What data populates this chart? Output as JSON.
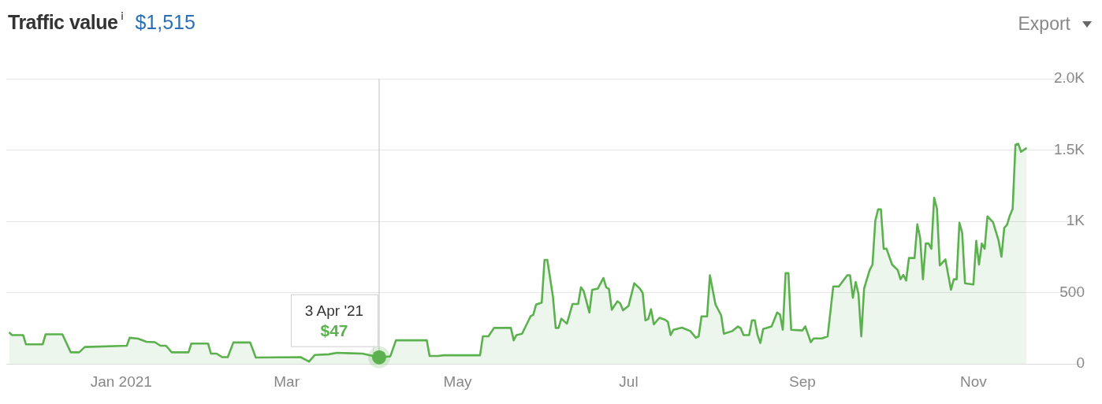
{
  "chart_data": {
    "type": "area",
    "title": "Traffic value",
    "subtitle": "$1,515",
    "x": [
      "2020-11-22",
      "2020-11-23",
      "2020-11-27",
      "2020-11-28",
      "2020-12-04",
      "2020-12-05",
      "2020-12-11",
      "2020-12-14",
      "2020-12-17",
      "2020-12-19",
      "2021-01-03",
      "2021-01-04",
      "2021-01-07",
      "2021-01-10",
      "2021-01-13",
      "2021-01-15",
      "2021-01-17",
      "2021-01-19",
      "2021-01-25",
      "2021-01-26",
      "2021-02-01",
      "2021-02-02",
      "2021-02-04",
      "2021-02-06",
      "2021-02-08",
      "2021-02-10",
      "2021-02-16",
      "2021-02-18",
      "2021-03-06",
      "2021-03-09",
      "2021-03-11",
      "2021-03-16",
      "2021-03-19",
      "2021-03-24",
      "2021-03-28",
      "2021-04-03",
      "2021-04-07",
      "2021-04-09",
      "2021-04-20",
      "2021-04-21",
      "2021-04-24",
      "2021-04-26",
      "2021-05-09",
      "2021-05-10",
      "2021-05-12",
      "2021-05-14",
      "2021-05-20",
      "2021-05-21",
      "2021-05-22",
      "2021-05-24",
      "2021-05-27",
      "2021-05-28",
      "2021-05-29",
      "2021-05-31",
      "2021-06-01",
      "2021-06-02",
      "2021-06-04",
      "2021-06-05",
      "2021-06-06",
      "2021-06-07",
      "2021-06-08",
      "2021-06-09",
      "2021-06-11",
      "2021-06-13",
      "2021-06-14",
      "2021-06-15",
      "2021-06-17",
      "2021-06-18",
      "2021-06-20",
      "2021-06-22",
      "2021-06-23",
      "2021-06-24",
      "2021-06-25",
      "2021-06-27",
      "2021-06-28",
      "2021-06-29",
      "2021-07-01",
      "2021-07-03",
      "2021-07-05",
      "2021-07-06",
      "2021-07-07",
      "2021-07-08",
      "2021-07-09",
      "2021-07-10",
      "2021-07-12",
      "2021-07-14",
      "2021-07-15",
      "2021-07-16",
      "2021-07-17",
      "2021-07-20",
      "2021-07-23",
      "2021-07-25",
      "2021-07-26",
      "2021-07-27",
      "2021-07-29",
      "2021-07-30",
      "2021-08-01",
      "2021-08-03",
      "2021-08-04",
      "2021-08-07",
      "2021-08-09",
      "2021-08-10",
      "2021-08-11",
      "2021-08-13",
      "2021-08-14",
      "2021-08-15",
      "2021-08-16",
      "2021-08-17",
      "2021-08-18",
      "2021-08-21",
      "2021-08-23",
      "2021-08-24",
      "2021-08-25",
      "2021-08-26",
      "2021-08-27",
      "2021-08-28",
      "2021-09-01",
      "2021-09-02",
      "2021-09-04",
      "2021-09-05",
      "2021-09-08",
      "2021-09-10",
      "2021-09-12",
      "2021-09-14",
      "2021-09-17",
      "2021-09-18",
      "2021-09-19",
      "2021-09-20",
      "2021-09-21",
      "2021-09-22",
      "2021-09-23",
      "2021-09-25",
      "2021-09-26",
      "2021-09-27",
      "2021-09-28",
      "2021-09-29",
      "2021-09-30",
      "2021-10-01",
      "2021-10-03",
      "2021-10-05",
      "2021-10-06",
      "2021-10-07",
      "2021-10-08",
      "2021-10-09",
      "2021-10-11",
      "2021-10-12",
      "2021-10-13",
      "2021-10-14",
      "2021-10-15",
      "2021-10-16",
      "2021-10-17",
      "2021-10-18",
      "2021-10-19",
      "2021-10-20",
      "2021-10-22",
      "2021-10-24",
      "2021-10-25",
      "2021-10-26",
      "2021-10-27",
      "2021-10-28",
      "2021-10-29",
      "2021-11-01",
      "2021-11-02",
      "2021-11-03",
      "2021-11-04",
      "2021-11-05",
      "2021-11-06",
      "2021-11-08",
      "2021-11-10",
      "2021-11-11",
      "2021-11-12",
      "2021-11-13",
      "2021-11-14",
      "2021-11-15",
      "2021-11-16",
      "2021-11-17",
      "2021-11-18",
      "2021-11-20"
    ],
    "series": [
      {
        "color": "#5cb14f",
        "values": [
          222,
          203,
          203,
          138,
          138,
          208,
          208,
          82,
          82,
          119,
          128,
          184,
          178,
          156,
          153,
          128,
          128,
          82,
          82,
          143,
          143,
          73,
          73,
          48,
          48,
          151,
          151,
          45,
          48,
          17,
          63,
          68,
          78,
          75,
          73,
          47,
          54,
          166,
          166,
          56,
          56,
          61,
          61,
          194,
          194,
          253,
          253,
          166,
          203,
          212,
          334,
          346,
          417,
          430,
          730,
          730,
          473,
          253,
          253,
          318,
          300,
          283,
          421,
          421,
          538,
          510,
          361,
          520,
          528,
          603,
          538,
          525,
          380,
          440,
          425,
          376,
          409,
          566,
          529,
          500,
          306,
          315,
          384,
          278,
          324,
          310,
          296,
          203,
          240,
          255,
          231,
          184,
          194,
          334,
          334,
          622,
          417,
          342,
          212,
          231,
          263,
          250,
          203,
          203,
          306,
          306,
          203,
          147,
          246,
          264,
          361,
          346,
          240,
          637,
          637,
          240,
          235,
          264,
          153,
          179,
          179,
          194,
          544,
          544,
          622,
          622,
          464,
          575,
          492,
          194,
          529,
          659,
          697,
          1004,
          1084,
          1084,
          808,
          808,
          697,
          659,
          594,
          625,
          585,
          743,
          743,
          979,
          883,
          594,
          845,
          845,
          808,
          1166,
          1088,
          691,
          734,
          520,
          594,
          594,
          991,
          920,
          566,
          557,
          864,
          697,
          845,
          808,
          1035,
          994,
          864,
          752,
          954,
          976,
          1041,
          1088,
          1538,
          1544,
          1488,
          1515
        ]
      }
    ],
    "xlim": [
      "2020-11-21",
      "2021-12-09"
    ],
    "xticks": [
      {
        "value": "2021-01-01",
        "label": "Jan 2021"
      },
      {
        "value": "2021-03-01",
        "label": "Mar"
      },
      {
        "value": "2021-05-01",
        "label": "May"
      },
      {
        "value": "2021-07-01",
        "label": "Jul"
      },
      {
        "value": "2021-09-01",
        "label": "Sep"
      },
      {
        "value": "2021-11-01",
        "label": "Nov"
      }
    ],
    "ylim": [
      0,
      2000
    ],
    "yticks": [
      0,
      500,
      {
        "value": 1000,
        "label": "1K"
      },
      {
        "value": 1500,
        "label": "1.5K"
      },
      {
        "value": 2000,
        "label": "2.0K"
      }
    ],
    "grid": "y",
    "legend": false,
    "marker": "none",
    "line_style": "solid",
    "ref_lines": [
      {
        "axis": "x",
        "value": "2021-04-03",
        "color": "#cccccc"
      }
    ],
    "annotations": [
      {
        "text": "3 Apr '21",
        "x": "2021-04-03",
        "y": 47
      },
      {
        "text": "$47",
        "x": "2021-04-03",
        "y": 47
      },
      "Export"
    ]
  }
}
